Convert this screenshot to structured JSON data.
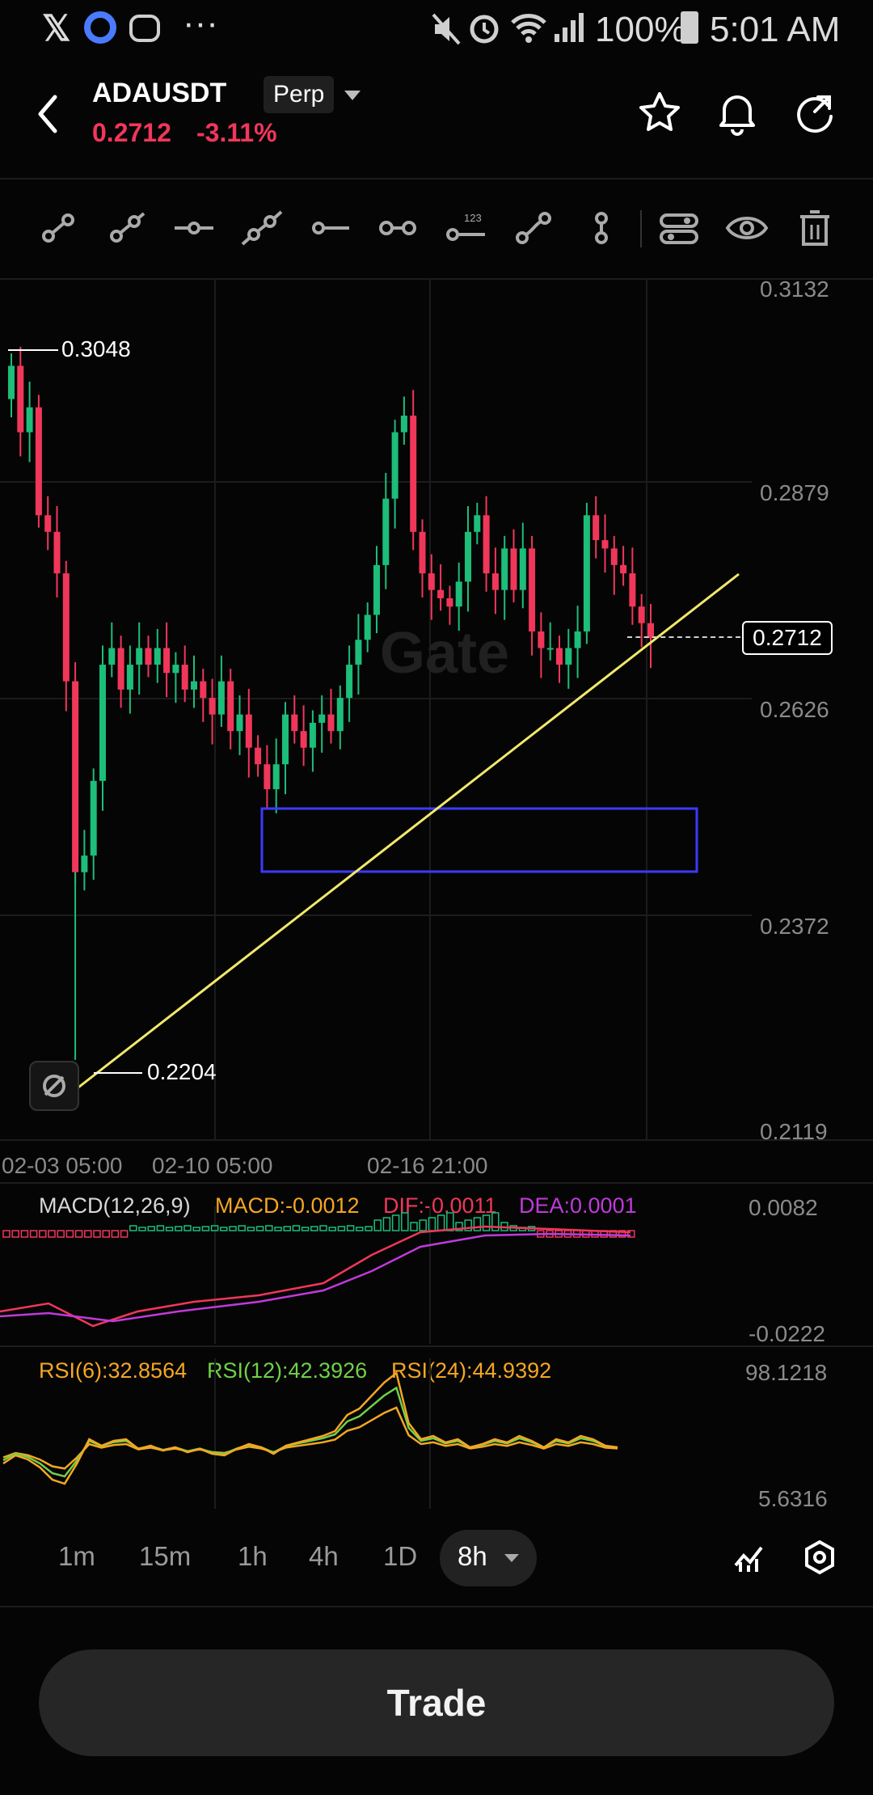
{
  "status": {
    "battery": "100%",
    "time": "5:01 AM"
  },
  "header": {
    "pair": "ADAUSDT",
    "type": "Perp",
    "price": "0.2712",
    "change": "-3.11%",
    "price_color": "#f0375a"
  },
  "toolbar": {
    "tools": [
      "trend-line",
      "ray",
      "horizontal-line",
      "extended-line",
      "horizontal-ray",
      "parallel-channel",
      "price-label",
      "segment",
      "vertical-line",
      "layers",
      "visibility",
      "delete"
    ],
    "price_label_text": "123"
  },
  "chart": {
    "price_axis": [
      "0.3132",
      "0.2879",
      "0.2626",
      "0.2372",
      "0.2119"
    ],
    "time_axis": [
      "02-03 05:00",
      "02-10 05:00",
      "02-16 21:00"
    ],
    "high_marker": "0.3048",
    "low_marker": "0.2204",
    "current_price": "0.2712",
    "watermark": "Gate",
    "up_color": "#1dbd7a",
    "down_color": "#f0375a"
  },
  "macd": {
    "label": "MACD(12,26,9)",
    "macd": "MACD:-0.0012",
    "dif": "DIF:-0.0011",
    "dea": "DEA:0.0001",
    "axis_top": "0.0082",
    "axis_bottom": "-0.0222"
  },
  "rsi": {
    "rsi6": "RSI(6):32.8564",
    "rsi12": "RSI(12):42.3926",
    "rsi24": "RSI(24):44.9392",
    "axis_top": "98.1218",
    "axis_bottom": "5.6316"
  },
  "timeframes": [
    "1m",
    "15m",
    "1h",
    "4h",
    "1D"
  ],
  "active_timeframe": "8h",
  "trade_label": "Trade",
  "chart_data": {
    "type": "candlestick",
    "title": "",
    "y_range": [
      0.2119,
      0.3132
    ],
    "x_ticks": [
      "02-03 05:00",
      "02-10 05:00",
      "02-16 21:00"
    ],
    "close_prices": [
      0.304,
      0.296,
      0.299,
      0.286,
      0.284,
      0.279,
      0.266,
      0.243,
      0.245,
      0.254,
      0.268,
      0.27,
      0.265,
      0.268,
      0.27,
      0.268,
      0.27,
      0.267,
      0.268,
      0.265,
      0.266,
      0.264,
      0.262,
      0.266,
      0.26,
      0.262,
      0.258,
      0.256,
      0.253,
      0.256,
      0.262,
      0.26,
      0.258,
      0.261,
      0.262,
      0.26,
      0.264,
      0.268,
      0.271,
      0.274,
      0.28,
      0.288,
      0.296,
      0.298,
      0.284,
      0.279,
      0.277,
      0.276,
      0.275,
      0.278,
      0.284,
      0.286,
      0.279,
      0.277,
      0.282,
      0.277,
      0.282,
      0.272,
      0.27,
      0.27,
      0.268,
      0.27,
      0.272,
      0.286,
      0.283,
      0.282,
      0.28,
      0.279,
      0.275,
      0.273,
      0.2712
    ]
  }
}
